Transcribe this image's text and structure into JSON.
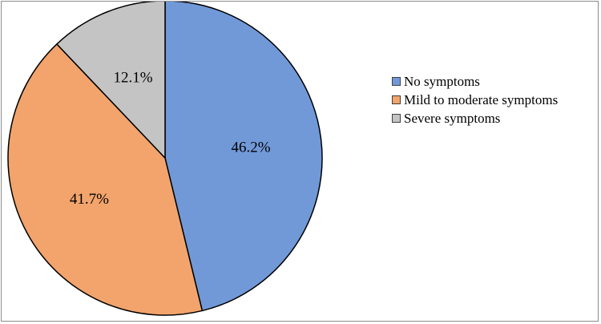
{
  "chart_data": {
    "type": "pie",
    "title": "",
    "categories": [
      "No symptoms",
      "Mild to moderate symptoms",
      "Severe symptoms"
    ],
    "values": [
      46.2,
      41.7,
      12.1
    ],
    "data_labels": [
      "46.2%",
      "41.7%",
      "12.1%"
    ],
    "colors": [
      "#7199d8",
      "#f2a46c",
      "#c4c4c4"
    ],
    "start_angle": "12 o'clock",
    "direction": "clockwise",
    "legend_position": "right",
    "grid": false
  }
}
